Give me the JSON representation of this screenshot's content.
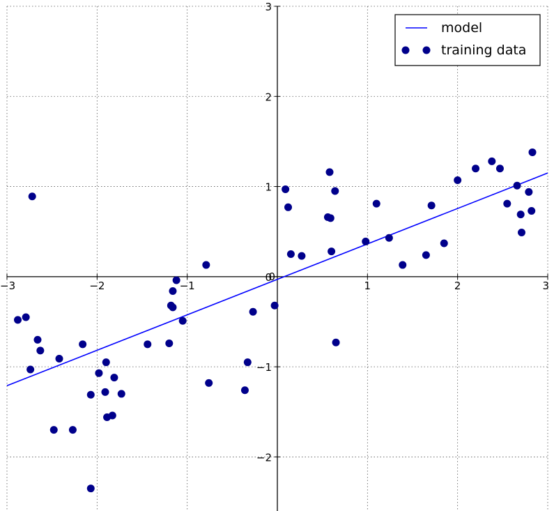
{
  "chart_data": {
    "type": "scatter",
    "title": "",
    "xlabel": "",
    "ylabel": "",
    "xlim": [
      -3,
      3
    ],
    "ylim": [
      -2.6,
      3.0
    ],
    "grid": true,
    "grid_style": "dotted",
    "spines": "centered at origin",
    "x_ticks": [
      {
        "value": -3,
        "label": "−3"
      },
      {
        "value": -2,
        "label": "−2"
      },
      {
        "value": -1,
        "label": "−1"
      },
      {
        "value": 0,
        "label": "0"
      },
      {
        "value": 1,
        "label": "1"
      },
      {
        "value": 2,
        "label": "2"
      },
      {
        "value": 3,
        "label": "3"
      }
    ],
    "y_ticks": [
      {
        "value": -2,
        "label": "−2"
      },
      {
        "value": -1,
        "label": "−1"
      },
      {
        "value": 0,
        "label": "0"
      },
      {
        "value": 1,
        "label": "1"
      },
      {
        "value": 2,
        "label": "2"
      },
      {
        "value": 3,
        "label": "3"
      }
    ],
    "legend": {
      "placement": "top-right",
      "entries": [
        {
          "label": "model",
          "kind": "line"
        },
        {
          "label": "training data",
          "kind": "marker"
        }
      ]
    },
    "series": [
      {
        "name": "model",
        "kind": "line",
        "color": "#0000ff",
        "x": [
          -3,
          3
        ],
        "y": [
          -1.21,
          1.15
        ]
      },
      {
        "name": "training data",
        "kind": "scatter",
        "color": "#00008b",
        "x": [
          -2.72,
          -2.88,
          -2.79,
          -2.66,
          -2.63,
          -2.74,
          -2.42,
          -2.16,
          -2.48,
          -2.27,
          -2.07,
          -1.98,
          -1.9,
          -1.91,
          -1.81,
          -1.73,
          -1.89,
          -1.83,
          -2.07,
          -1.44,
          -1.2,
          -1.16,
          -1.18,
          -1.16,
          -1.12,
          -1.05,
          -0.79,
          -0.76,
          -0.36,
          -0.33,
          -0.27,
          -0.03,
          0.09,
          0.12,
          0.15,
          0.27,
          0.56,
          0.58,
          0.59,
          0.6,
          0.65,
          0.64,
          0.98,
          1.1,
          1.24,
          1.39,
          1.65,
          1.71,
          1.85,
          2.0,
          2.2,
          2.38,
          2.47,
          2.55,
          2.66,
          2.7,
          2.71,
          2.79,
          2.82,
          2.83
        ],
        "y": [
          0.89,
          -0.48,
          -0.45,
          -0.7,
          -0.82,
          -1.03,
          -0.91,
          -0.75,
          -1.7,
          -1.7,
          -1.31,
          -1.07,
          -0.95,
          -1.28,
          -1.12,
          -1.3,
          -1.56,
          -1.54,
          -2.35,
          -0.75,
          -0.74,
          -0.16,
          -0.32,
          -0.34,
          -0.04,
          -0.49,
          0.13,
          -1.18,
          -1.26,
          -0.95,
          -0.39,
          -0.32,
          0.97,
          0.77,
          0.25,
          0.23,
          0.66,
          1.16,
          0.65,
          0.28,
          -0.73,
          0.95,
          0.39,
          0.81,
          0.43,
          0.13,
          0.24,
          0.79,
          0.37,
          1.07,
          1.2,
          1.28,
          1.2,
          0.81,
          1.01,
          0.69,
          0.49,
          0.94,
          0.73,
          1.38
        ]
      }
    ]
  }
}
